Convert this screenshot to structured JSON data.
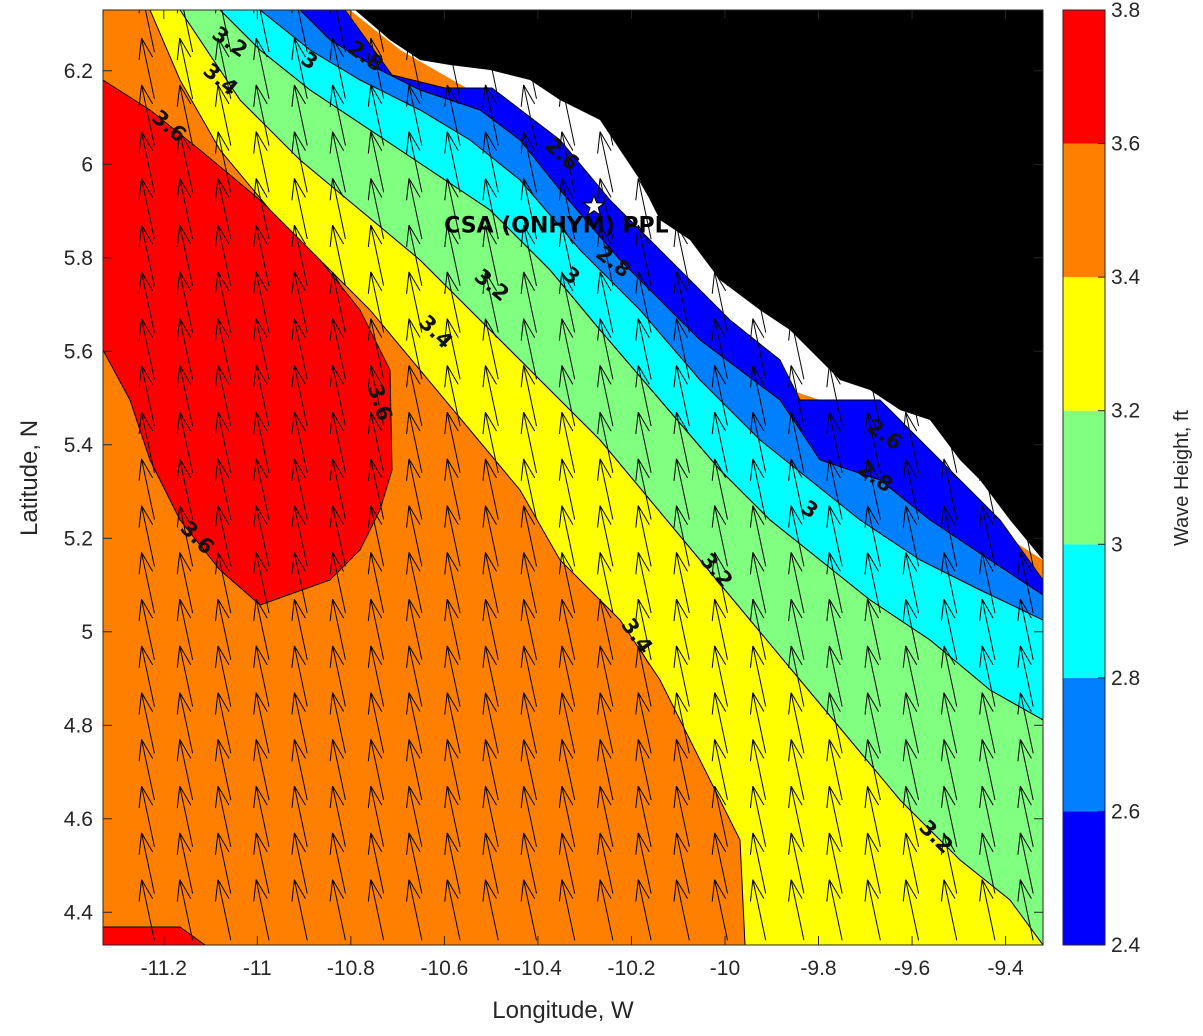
{
  "chart_data": {
    "type": "contour",
    "title": "",
    "xlabel": "Longitude, W",
    "ylabel": "Latitude, N",
    "xlim": [
      -11.33,
      -9.32
    ],
    "ylim": [
      4.33,
      6.33
    ],
    "xticks": [
      -11.2,
      -11,
      -10.8,
      -10.6,
      -10.4,
      -10.2,
      -10,
      -9.8,
      -9.6,
      -9.4
    ],
    "yticks": [
      4.4,
      4.6,
      4.8,
      5,
      5.2,
      5.4,
      5.6,
      5.8,
      6,
      6.2
    ],
    "grid": false,
    "colorbar": {
      "label": "Wave Height, ft",
      "ticks": [
        2.4,
        2.6,
        2.8,
        3,
        3.2,
        3.4,
        3.6,
        3.8
      ],
      "levels": [
        {
          "from": 2.4,
          "to": 2.6,
          "color": "#0000FF"
        },
        {
          "from": 2.6,
          "to": 2.8,
          "color": "#0080FF"
        },
        {
          "from": 2.8,
          "to": 3.0,
          "color": "#00FFFF"
        },
        {
          "from": 3.0,
          "to": 3.2,
          "color": "#80FF80"
        },
        {
          "from": 3.2,
          "to": 3.4,
          "color": "#FFFF00"
        },
        {
          "from": 3.4,
          "to": 3.6,
          "color": "#FF8000"
        },
        {
          "from": 3.6,
          "to": 3.8,
          "color": "#FF0000"
        }
      ]
    },
    "land_color": "#000000",
    "contour_labels": [
      {
        "text": "3.2",
        "lon": -11.06,
        "lat": 6.26,
        "angle": 35
      },
      {
        "text": "3",
        "lon": -10.89,
        "lat": 6.22,
        "angle": 35
      },
      {
        "text": "2.8",
        "lon": -10.77,
        "lat": 6.23,
        "angle": 35
      },
      {
        "text": "3.4",
        "lon": -11.08,
        "lat": 6.18,
        "angle": 40
      },
      {
        "text": "3.6",
        "lon": -11.19,
        "lat": 6.08,
        "angle": 40
      },
      {
        "text": "2.6",
        "lon": -10.35,
        "lat": 6.02,
        "angle": 42
      },
      {
        "text": "3.2",
        "lon": -10.5,
        "lat": 5.74,
        "angle": 40
      },
      {
        "text": "3",
        "lon": -10.33,
        "lat": 5.76,
        "angle": 40
      },
      {
        "text": "2.8",
        "lon": -10.24,
        "lat": 5.79,
        "angle": 38
      },
      {
        "text": "3.4",
        "lon": -10.62,
        "lat": 5.64,
        "angle": 45
      },
      {
        "text": "3.6",
        "lon": -10.74,
        "lat": 5.49,
        "angle": 72
      },
      {
        "text": "2.6",
        "lon": -9.66,
        "lat": 5.42,
        "angle": 35
      },
      {
        "text": "2.8",
        "lon": -9.68,
        "lat": 5.33,
        "angle": 35
      },
      {
        "text": "3",
        "lon": -9.82,
        "lat": 5.26,
        "angle": 35
      },
      {
        "text": "3.2",
        "lon": -10.02,
        "lat": 5.13,
        "angle": 50
      },
      {
        "text": "3.6",
        "lon": -11.13,
        "lat": 5.2,
        "angle": 45
      },
      {
        "text": "3.4",
        "lon": -10.19,
        "lat": 4.99,
        "angle": 55
      },
      {
        "text": "3.2",
        "lon": -9.55,
        "lat": 4.56,
        "angle": 45
      }
    ],
    "stations": [
      {
        "name": "CSA (ONHYM) PPL EBS",
        "lon": -10.28,
        "lat": 5.91
      }
    ],
    "vectors": {
      "lon_start": -11.25,
      "lon_step": 0.0817,
      "lon_count": 24,
      "lat_start": 4.34,
      "lat_step": 0.1,
      "lat_count": 20,
      "direction_deg_from_north": -12
    }
  }
}
